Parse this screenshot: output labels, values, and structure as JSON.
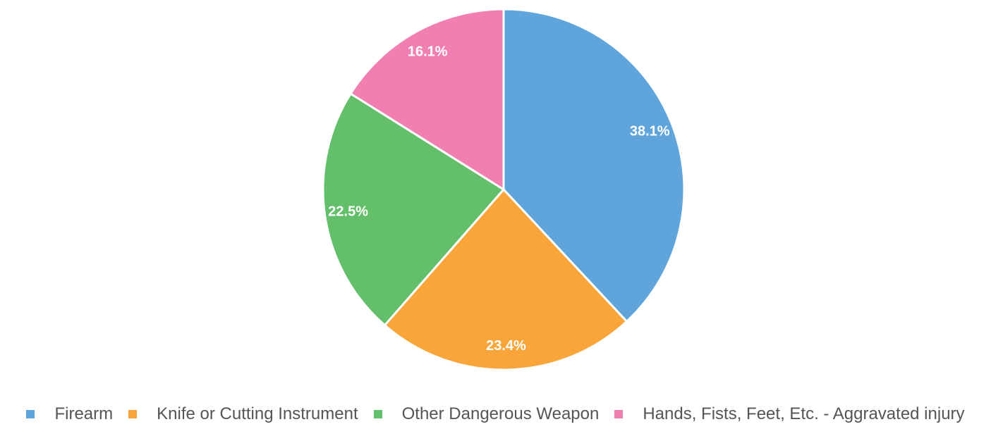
{
  "chart_data": {
    "type": "pie",
    "title": "",
    "categories": [
      "Firearm",
      "Knife or Cutting Instrument",
      "Other Dangerous Weapon",
      "Hands, Fists, Feet, Etc. - Aggravated injury"
    ],
    "values": [
      38.1,
      23.4,
      22.5,
      16.1
    ],
    "labels": [
      "38.1%",
      "23.4%",
      "22.5%",
      "16.1%"
    ],
    "colors": [
      "#5FA5DB",
      "#F9A53A",
      "#63BF6A",
      "#F17FB2"
    ],
    "legend_position": "bottom",
    "start_angle": "12 o'clock",
    "direction": "clockwise"
  },
  "legend": {
    "items": [
      {
        "label": "Firearm",
        "color": "#5FA5DB"
      },
      {
        "label": "Knife or Cutting Instrument",
        "color": "#F9A53A"
      },
      {
        "label": "Other Dangerous Weapon",
        "color": "#63BF6A"
      },
      {
        "label": "Hands, Fists, Feet, Etc. - Aggravated injury",
        "color": "#F17FB2"
      }
    ]
  }
}
